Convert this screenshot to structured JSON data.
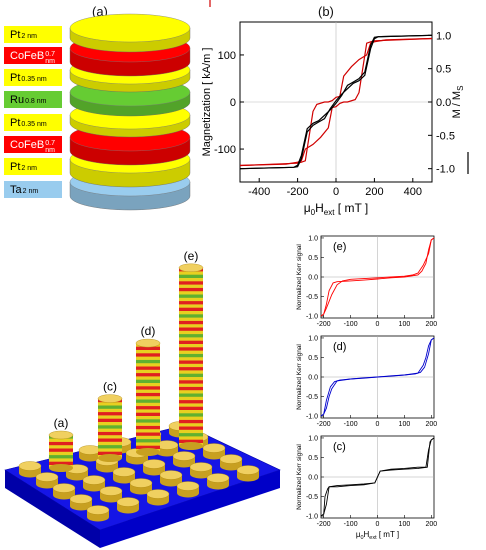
{
  "panel_labels": {
    "a": "(a)",
    "b": "(b)"
  },
  "stack_layers": [
    {
      "name": "Pt",
      "thickness": "2 nm",
      "color": "#ffff00"
    },
    {
      "name": "CoFeB",
      "thickness": "0.7 nm",
      "color": "#ff0000"
    },
    {
      "name": "Pt",
      "thickness": "0.35 nm",
      "color": "#ffff00"
    },
    {
      "name": "Ru",
      "thickness": "0.8 nm",
      "color": "#66cc33"
    },
    {
      "name": "Pt",
      "thickness": "0.35 nm",
      "color": "#ffff00"
    },
    {
      "name": "CoFeB",
      "thickness": "0.7 nm",
      "color": "#ff0000"
    },
    {
      "name": "Pt",
      "thickness": "2 nm",
      "color": "#ffff00"
    },
    {
      "name": "Ta",
      "thickness": "2 nm",
      "color": "#99ccee"
    }
  ],
  "pillars": {
    "labels": [
      "(a)",
      "(c)",
      "(d)",
      "(e)"
    ]
  },
  "chart_data": [
    {
      "type": "line",
      "panel": "(b)",
      "xlabel_main": "μ",
      "xlabel_sub0": "0",
      "xlabel_H": "H",
      "xlabel_sub1": "ext",
      "xlabel_unit": " [ mT ]",
      "ylabel_left": "Magnetization [ kA/m ]",
      "ylabel_right": "M / M",
      "ylabel_right_sub": "S",
      "xlim": [
        -500,
        500
      ],
      "ylim_left": [
        -170,
        170
      ],
      "ylim_right": [
        -1.2,
        1.2
      ],
      "xticks": [
        -400,
        -200,
        0,
        200,
        400
      ],
      "yticks_left": [
        -100,
        0,
        100
      ],
      "yticks_right": [
        -1.0,
        -0.5,
        0.0,
        0.5,
        1.0
      ],
      "xtick_labels": [
        "-400",
        "-200",
        "0",
        "200",
        "400"
      ],
      "ytick_labels_left": [
        "-100",
        "0",
        "100"
      ],
      "ytick_labels_right": [
        "-1.0",
        "-0.5",
        "0.0",
        "0.5",
        "1.0"
      ],
      "series": [
        {
          "color": "#d00000",
          "axis": "left",
          "x": [
            -500,
            -200,
            -180,
            -160,
            -120,
            -100,
            -60,
            -40,
            -20,
            0,
            20,
            40,
            80,
            120,
            160,
            180,
            200,
            260,
            500
          ],
          "y": [
            -135,
            -130,
            -128,
            -125,
            -20,
            -5,
            0,
            0,
            3,
            10,
            12,
            55,
            75,
            90,
            100,
            125,
            128,
            132,
            135
          ]
        },
        {
          "color": "#d00000",
          "axis": "left",
          "x": [
            500,
            200,
            180,
            160,
            120,
            100,
            60,
            40,
            20,
            0,
            -20,
            -40,
            -80,
            -120,
            -160,
            -180,
            -200,
            -260,
            -500
          ],
          "y": [
            135,
            130,
            128,
            125,
            20,
            5,
            0,
            0,
            -3,
            -10,
            -12,
            -55,
            -75,
            -90,
            -100,
            -125,
            -128,
            -132,
            -135
          ]
        },
        {
          "color": "#000000",
          "axis": "right",
          "x": [
            -500,
            -220,
            -200,
            -180,
            -150,
            -120,
            -90,
            -60,
            -30,
            0,
            30,
            60,
            90,
            120,
            150,
            180,
            200,
            220,
            500
          ],
          "y": [
            -1.0,
            -0.98,
            -0.97,
            -0.85,
            -0.45,
            -0.35,
            -0.3,
            -0.25,
            -0.1,
            0.02,
            0.12,
            0.2,
            0.28,
            0.32,
            0.4,
            0.8,
            0.95,
            0.98,
            1.0
          ]
        },
        {
          "color": "#000000",
          "axis": "right",
          "x": [
            500,
            220,
            200,
            180,
            150,
            120,
            90,
            60,
            30,
            0,
            -30,
            -60,
            -90,
            -120,
            -150,
            -180,
            -200,
            -220,
            -500
          ],
          "y": [
            1.0,
            0.98,
            0.97,
            0.85,
            0.45,
            0.35,
            0.3,
            0.25,
            0.1,
            -0.02,
            -0.12,
            -0.2,
            -0.28,
            -0.32,
            -0.4,
            -0.8,
            -0.95,
            -0.98,
            -1.0
          ]
        }
      ]
    },
    {
      "type": "line",
      "panel": "(e)",
      "ylabel": "Normalized Kerr signal",
      "xlim": [
        -210,
        210
      ],
      "ylim": [
        -1.05,
        1.05
      ],
      "xticks": [
        -200,
        -100,
        0,
        100,
        200
      ],
      "xtick_labels": [
        "-200",
        "-100",
        "0",
        "100",
        "200"
      ],
      "yticks": [
        -1.0,
        -0.5,
        0.0,
        0.5,
        1.0
      ],
      "ytick_labels": [
        "-1.0",
        "-0.5",
        "0.0",
        "0.5",
        "1.0"
      ],
      "series": [
        {
          "color": "#ff0000",
          "x": [
            -210,
            -200,
            -190,
            -180,
            -165,
            -150,
            -100,
            -50,
            0,
            50,
            100,
            150,
            165,
            180,
            190,
            200,
            210
          ],
          "y": [
            -1.0,
            -0.95,
            -0.7,
            -0.35,
            -0.15,
            -0.12,
            -0.1,
            -0.08,
            -0.05,
            -0.02,
            0.0,
            0.05,
            0.15,
            0.35,
            0.7,
            0.95,
            1.0
          ]
        },
        {
          "color": "#ff0000",
          "x": [
            210,
            200,
            190,
            170,
            150,
            130,
            100,
            50,
            0,
            -50,
            -100,
            -130,
            -150,
            -170,
            -190,
            -200,
            -210
          ],
          "y": [
            1.0,
            0.95,
            0.6,
            0.3,
            0.1,
            0.05,
            0.02,
            0.0,
            -0.02,
            -0.04,
            -0.06,
            -0.1,
            -0.2,
            -0.45,
            -0.8,
            -0.95,
            -1.0
          ]
        }
      ]
    },
    {
      "type": "line",
      "panel": "(d)",
      "ylabel": "Normalized Kerr signal",
      "xlim": [
        -210,
        210
      ],
      "ylim": [
        -1.05,
        1.05
      ],
      "xticks": [
        -200,
        -100,
        0,
        100,
        200
      ],
      "xtick_labels": [
        "-200",
        "-100",
        "0",
        "100",
        "200"
      ],
      "yticks": [
        -1.0,
        -0.5,
        0.0,
        0.5,
        1.0
      ],
      "ytick_labels": [
        "-1.0",
        "-0.5",
        "0.0",
        "0.5",
        "1.0"
      ],
      "series": [
        {
          "color": "#0000cc",
          "x": [
            -210,
            -200,
            -190,
            -175,
            -160,
            -140,
            -100,
            -50,
            0,
            50,
            100,
            150,
            170,
            180,
            190,
            200,
            210
          ],
          "y": [
            -1.0,
            -0.95,
            -0.6,
            -0.25,
            -0.12,
            -0.08,
            -0.05,
            -0.03,
            0.0,
            0.02,
            0.05,
            0.1,
            0.3,
            0.5,
            0.8,
            0.95,
            1.0
          ]
        },
        {
          "color": "#0000cc",
          "x": [
            210,
            200,
            190,
            175,
            160,
            140,
            100,
            50,
            0,
            -50,
            -100,
            -150,
            -170,
            -180,
            -190,
            -200,
            -210
          ],
          "y": [
            1.0,
            0.95,
            0.6,
            0.25,
            0.12,
            0.08,
            0.05,
            0.03,
            0.0,
            -0.02,
            -0.05,
            -0.1,
            -0.3,
            -0.5,
            -0.8,
            -0.95,
            -1.0
          ]
        }
      ]
    },
    {
      "type": "line",
      "panel": "(c)",
      "ylabel": "Normalized Kerr signal",
      "xlabel_main": "μ",
      "xlabel_sub0": "0",
      "xlabel_H": "H",
      "xlabel_sub1": "ext",
      "xlabel_unit": " [ mT ]",
      "xlim": [
        -210,
        210
      ],
      "ylim": [
        -1.05,
        1.05
      ],
      "xticks": [
        -200,
        -100,
        0,
        100,
        200
      ],
      "xtick_labels": [
        "-200",
        "-100",
        "0",
        "100",
        "200"
      ],
      "yticks": [
        -1.0,
        -0.5,
        0.0,
        0.5,
        1.0
      ],
      "ytick_labels": [
        "-1.0",
        "-0.5",
        "0.0",
        "0.5",
        "1.0"
      ],
      "series": [
        {
          "color": "#000000",
          "x": [
            -210,
            -200,
            -195,
            -185,
            -180,
            -150,
            -100,
            -50,
            -10,
            0,
            10,
            50,
            100,
            150,
            185,
            195,
            200,
            210
          ],
          "y": [
            -1.0,
            -0.95,
            -0.5,
            -0.3,
            -0.25,
            -0.25,
            -0.22,
            -0.2,
            -0.15,
            0.0,
            0.15,
            0.18,
            0.2,
            0.22,
            0.25,
            0.9,
            0.95,
            1.0
          ]
        },
        {
          "color": "#000000",
          "x": [
            210,
            200,
            190,
            180,
            150,
            100,
            50,
            10,
            0,
            -10,
            -50,
            -100,
            -150,
            -180,
            -190,
            -200,
            -210
          ],
          "y": [
            1.0,
            0.95,
            0.7,
            0.25,
            0.25,
            0.22,
            0.2,
            0.15,
            0.0,
            -0.15,
            -0.18,
            -0.2,
            -0.22,
            -0.25,
            -0.7,
            -0.95,
            -1.0
          ]
        }
      ]
    }
  ]
}
